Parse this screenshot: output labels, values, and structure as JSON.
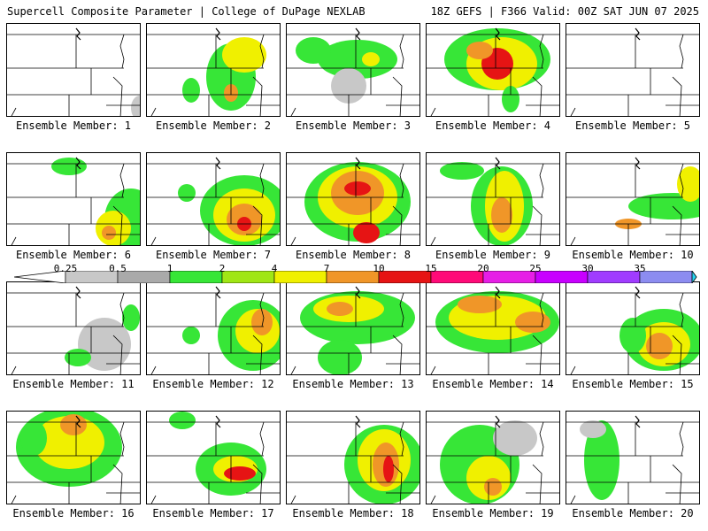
{
  "header": {
    "title": "Supercell Composite Parameter | College of DuPage NEXLAB",
    "run_info": "18Z GEFS | F366 Valid: 00Z SAT JUN 07 2025"
  },
  "panels": [
    {
      "label": "Ensemble Member: 1",
      "blobs": [
        [
          150,
          95,
          10,
          14,
          0
        ]
      ]
    },
    {
      "label": "Ensemble Member: 2",
      "blobs": [
        [
          95,
          60,
          28,
          38,
          1
        ],
        [
          110,
          35,
          25,
          20,
          2
        ],
        [
          95,
          78,
          8,
          10,
          3
        ],
        [
          50,
          75,
          10,
          14,
          1
        ]
      ]
    },
    {
      "label": "Ensemble Member: 3",
      "blobs": [
        [
          80,
          40,
          45,
          22,
          1
        ],
        [
          30,
          30,
          20,
          15,
          1
        ],
        [
          70,
          70,
          20,
          20,
          0
        ],
        [
          95,
          40,
          10,
          8,
          2
        ]
      ]
    },
    {
      "label": "Ensemble Member: 4",
      "blobs": [
        [
          80,
          40,
          60,
          35,
          1
        ],
        [
          85,
          45,
          40,
          30,
          2
        ],
        [
          80,
          45,
          18,
          18,
          4
        ],
        [
          60,
          30,
          15,
          10,
          3
        ],
        [
          95,
          85,
          10,
          15,
          1
        ]
      ]
    },
    {
      "label": "Ensemble Member: 5",
      "blobs": []
    },
    {
      "label": "Ensemble Member: 6",
      "blobs": [
        [
          140,
          75,
          30,
          35,
          1
        ],
        [
          120,
          85,
          20,
          20,
          2
        ],
        [
          115,
          90,
          8,
          8,
          3
        ],
        [
          70,
          15,
          20,
          10,
          1
        ]
      ]
    },
    {
      "label": "Ensemble Member: 7",
      "blobs": [
        [
          110,
          65,
          50,
          40,
          1
        ],
        [
          110,
          70,
          35,
          30,
          2
        ],
        [
          110,
          75,
          20,
          18,
          3
        ],
        [
          110,
          80,
          8,
          8,
          4
        ],
        [
          45,
          45,
          10,
          10,
          1
        ]
      ]
    },
    {
      "label": "Ensemble Member: 8",
      "blobs": [
        [
          80,
          55,
          60,
          45,
          1
        ],
        [
          80,
          50,
          45,
          35,
          2
        ],
        [
          80,
          45,
          30,
          25,
          3
        ],
        [
          90,
          90,
          15,
          12,
          4
        ],
        [
          80,
          40,
          15,
          8,
          4
        ]
      ]
    },
    {
      "label": "Ensemble Member: 9",
      "blobs": [
        [
          85,
          60,
          35,
          45,
          1
        ],
        [
          88,
          60,
          22,
          40,
          2
        ],
        [
          85,
          70,
          12,
          20,
          3
        ],
        [
          40,
          20,
          25,
          10,
          1
        ]
      ]
    },
    {
      "label": "Ensemble Member: 10",
      "blobs": [
        [
          120,
          60,
          50,
          15,
          1
        ],
        [
          140,
          35,
          15,
          20,
          2
        ],
        [
          70,
          80,
          15,
          6,
          3
        ]
      ]
    },
    {
      "label": "Ensemble Member: 11",
      "blobs": [
        [
          110,
          70,
          30,
          30,
          0
        ],
        [
          80,
          85,
          15,
          10,
          1
        ],
        [
          140,
          40,
          10,
          15,
          1
        ]
      ]
    },
    {
      "label": "Ensemble Member: 12",
      "blobs": [
        [
          120,
          60,
          40,
          40,
          1
        ],
        [
          125,
          55,
          25,
          25,
          2
        ],
        [
          130,
          45,
          12,
          15,
          3
        ],
        [
          50,
          60,
          10,
          10,
          1
        ]
      ]
    },
    {
      "label": "Ensemble Member: 13",
      "blobs": [
        [
          80,
          40,
          65,
          30,
          1
        ],
        [
          70,
          30,
          40,
          15,
          2
        ],
        [
          60,
          30,
          15,
          8,
          3
        ],
        [
          60,
          85,
          25,
          20,
          1
        ]
      ]
    },
    {
      "label": "Ensemble Member: 14",
      "blobs": [
        [
          80,
          45,
          70,
          35,
          1
        ],
        [
          80,
          40,
          55,
          25,
          2
        ],
        [
          60,
          25,
          25,
          10,
          3
        ],
        [
          120,
          45,
          20,
          12,
          3
        ]
      ]
    },
    {
      "label": "Ensemble Member: 15",
      "blobs": [
        [
          110,
          65,
          45,
          35,
          1
        ],
        [
          110,
          70,
          30,
          25,
          2
        ],
        [
          105,
          72,
          15,
          15,
          3
        ],
        [
          75,
          60,
          15,
          20,
          1
        ]
      ]
    },
    {
      "label": "Ensemble Member: 16",
      "blobs": [
        [
          70,
          40,
          60,
          45,
          1
        ],
        [
          70,
          35,
          40,
          30,
          2
        ],
        [
          75,
          15,
          15,
          12,
          3
        ],
        [
          30,
          30,
          15,
          20,
          1
        ]
      ]
    },
    {
      "label": "Ensemble Member: 17",
      "blobs": [
        [
          95,
          65,
          40,
          30,
          1
        ],
        [
          100,
          65,
          25,
          15,
          2
        ],
        [
          105,
          70,
          18,
          8,
          4
        ],
        [
          40,
          10,
          15,
          10,
          1
        ]
      ]
    },
    {
      "label": "Ensemble Member: 18",
      "blobs": [
        [
          110,
          60,
          45,
          45,
          1
        ],
        [
          110,
          55,
          30,
          35,
          2
        ],
        [
          112,
          60,
          15,
          25,
          3
        ],
        [
          115,
          65,
          6,
          15,
          4
        ]
      ]
    },
    {
      "label": "Ensemble Member: 19",
      "blobs": [
        [
          60,
          60,
          45,
          45,
          1
        ],
        [
          70,
          75,
          25,
          25,
          2
        ],
        [
          75,
          85,
          10,
          10,
          3
        ],
        [
          100,
          30,
          25,
          20,
          0
        ]
      ]
    },
    {
      "label": "Ensemble Member: 20",
      "blobs": [
        [
          40,
          55,
          20,
          45,
          1
        ],
        [
          30,
          20,
          15,
          10,
          0
        ]
      ]
    }
  ],
  "colorbar": {
    "ticks": [
      "0.25",
      "0.5",
      "1",
      "2",
      "4",
      "7",
      "10",
      "15",
      "20",
      "25",
      "30",
      "35"
    ],
    "colors": [
      "#c8c8c8",
      "#aaaaaa",
      "#37e637",
      "#a0e614",
      "#f0f000",
      "#f09628",
      "#e61414",
      "#ff0a78",
      "#e61ee6",
      "#c800ff",
      "#a03cff",
      "#8c8cf0",
      "#28d2f0"
    ]
  },
  "blob_colors": [
    "#c8c8c8",
    "#37e637",
    "#f0f000",
    "#f09628",
    "#e61414"
  ]
}
